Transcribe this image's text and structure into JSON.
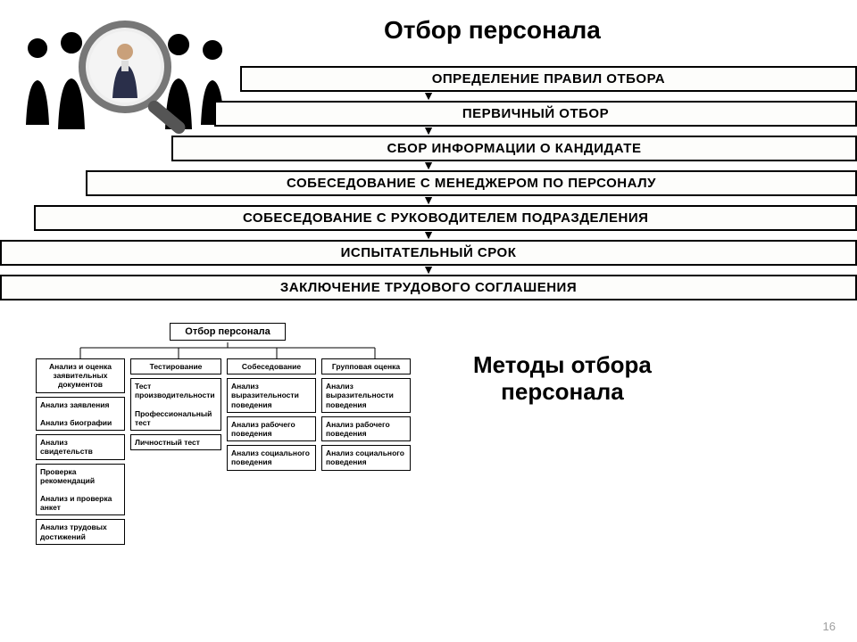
{
  "page_number": "16",
  "title": "Отбор персонала",
  "methods_title_line1": "Методы отбора",
  "methods_title_line2": "персонала",
  "flowchart": {
    "type": "flowchart",
    "box_border_color": "#000000",
    "box_bg_color": "#fdfdfb",
    "arrow_color": "#000000",
    "font_size": 15,
    "steps": [
      {
        "label": "ОПРЕДЕЛЕНИЕ ПРАВИЛ ОТБОРА",
        "width_percent": 72,
        "align_right": true
      },
      {
        "label": "ПЕРВИЧНЫЙ ОТБОР",
        "width_percent": 75,
        "align_right": true
      },
      {
        "label": "СБОР ИНФОРМАЦИИ О КАНДИДАТЕ",
        "width_percent": 80,
        "align_right": true
      },
      {
        "label": "СОБЕСЕДОВАНИЕ С МЕНЕДЖЕРОМ ПО ПЕРСОНАЛУ",
        "width_percent": 90,
        "align_right": true
      },
      {
        "label": "СОБЕСЕДОВАНИЕ С РУКОВОДИТЕЛЕМ ПОДРАЗДЕЛЕНИЯ",
        "width_percent": 96,
        "align_right": true
      },
      {
        "label": "ИСПЫТАТЕЛЬНЫЙ СРОК",
        "width_percent": 100,
        "align_right": false
      },
      {
        "label": "ЗАКЛЮЧЕНИЕ ТРУДОВОГО СОГЛАШЕНИЯ",
        "width_percent": 100,
        "align_right": false
      }
    ]
  },
  "methods": {
    "type": "tree",
    "root_label": "Отбор персонала",
    "box_border_color": "#000000",
    "box_bg_color": "#ffffff",
    "font_size": 8.5,
    "columns": [
      {
        "header": "Анализ и оценка заявительных документов",
        "width": 100,
        "items": [
          "Анализ заявления\n\nАнализ биографии",
          "Анализ свидетельств",
          "Проверка рекомендаций\n\nАнализ и проверка анкет",
          "Анализ трудовых достижений"
        ]
      },
      {
        "header": "Тестирование",
        "width": 102,
        "items": [
          "Тест производительности\n\nПрофессиональный тест",
          "Личностный тест"
        ]
      },
      {
        "header": "Собеседование",
        "width": 100,
        "items": [
          "Анализ выразительности поведения",
          "Анализ рабочего поведения",
          "Анализ социального поведения"
        ]
      },
      {
        "header": "Групповая оценка",
        "width": 100,
        "items": [
          "Анализ выразительности поведения",
          "Анализ рабочего поведения",
          "Анализ социального поведения"
        ]
      }
    ]
  },
  "illustration": {
    "silhouette_color": "#000000",
    "magnifier_frame_color": "#888888",
    "magnifier_bg": "#e8e8e8"
  }
}
